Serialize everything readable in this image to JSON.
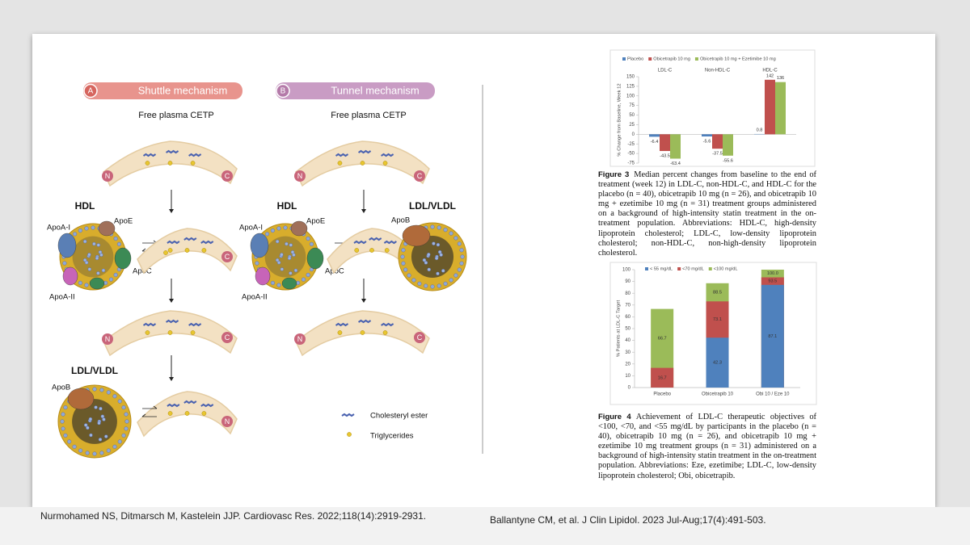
{
  "diagram": {
    "panels": [
      {
        "letter": "A",
        "title": "Shuttle mechanism",
        "subtitle": "Free plasma CETP"
      },
      {
        "letter": "B",
        "title": "Tunnel mechanism",
        "subtitle": "Free plasma CETP"
      }
    ],
    "terminals": {
      "n": "N",
      "c": "C"
    },
    "particles": {
      "hdl": "HDL",
      "ldl": "LDL/VLDL"
    },
    "apolipoproteins": {
      "apoa1": "ApoA-I",
      "apoe": "ApoE",
      "apoc": "ApoC",
      "apoa2": "ApoA-II",
      "apob": "ApoB"
    },
    "legend": {
      "ce": "Cholesteryl ester",
      "tg": "Triglycerides"
    }
  },
  "chart_data": [
    {
      "type": "bar",
      "barmode": "group",
      "ylabel": "% Change from Baseline, Week 12",
      "categories": [
        "LDL-C",
        "Non-HDL-C",
        "HDL-C"
      ],
      "category_labels": "top",
      "series": [
        {
          "name": "Placebo",
          "color": "#4f81bd",
          "values": [
            -6.4,
            -5.6,
            0.8
          ]
        },
        {
          "name": "Obicetrapib 10 mg",
          "color": "#c0504d",
          "values": [
            -43.5,
            -37.5,
            142
          ]
        },
        {
          "name": "Obicetrapib 10 mg + Ezetimibe 10 mg",
          "color": "#9bbb59",
          "values": [
            -63.4,
            -55.6,
            136
          ]
        }
      ],
      "ylim": [
        -75,
        150
      ],
      "yticks": [
        -75,
        -50,
        -25,
        0,
        25,
        50,
        75,
        100,
        125,
        150
      ],
      "legend": "top"
    },
    {
      "type": "bar",
      "barmode": "overlay",
      "ylabel": "% Patients at LDL-C Target",
      "categories": [
        "Placebo",
        "Obicetrapib 10",
        "Obi 10 / Eze 10"
      ],
      "category_labels": "bottom",
      "series": [
        {
          "name": "< 55 mg/dL",
          "color": "#4f81bd",
          "values": [
            null,
            42.3,
            87.1
          ]
        },
        {
          "name": "<70 mg/dL",
          "color": "#c0504d",
          "values": [
            16.7,
            73.1,
            93.5
          ]
        },
        {
          "name": "<100 mg/dL",
          "color": "#9bbb59",
          "values": [
            66.7,
            88.5,
            100
          ],
          "value_labels": [
            "66.7",
            "88.5",
            "100.0"
          ]
        }
      ],
      "ylim": [
        0,
        100
      ],
      "yticks": [
        0,
        10,
        20,
        30,
        40,
        50,
        60,
        70,
        80,
        90,
        100
      ],
      "legend": "top"
    }
  ],
  "captions": [
    {
      "label": "Figure 3",
      "text": "Median percent changes from baseline to the end of treatment (week 12) in LDL-C, non-HDL-C, and HDL-C for the placebo (n = 40), obicetrapib 10 mg (n = 26), and obicetrapib 10 mg + ezetimibe 10 mg (n = 31) treatment groups administered on a background of high-intensity statin treatment in the on-treatment population. Abbreviations: HDL-C, high-density lipoprotein cholesterol; LDL-C, low-density lipoprotein cholesterol; non-HDL-C, non-high-density lipoprotein cholesterol."
    },
    {
      "label": "Figure 4",
      "text": "Achievement of LDL-C therapeutic objectives of <100, <70, and <55 mg/dL by participants in the placebo (n = 40), obicetrapib 10 mg (n = 26), and obicetrapib 10 mg + ezetimibe 10 mg treatment groups (n = 31) administered on a background of high-intensity statin treatment in the on-treatment population. Abbreviations: Eze, ezetimibe; LDL-C, low-density lipoprotein cholesterol; Obi, obicetrapib."
    }
  ],
  "citations": [
    "Nurmohamed NS, Ditmarsch M, Kastelein JJP. Cardiovasc Res. 2022;118(14):2919-2931.",
    "Ballantyne CM, et al. J Clin Lipidol. 2023 Jul-Aug;17(4):491-503."
  ]
}
